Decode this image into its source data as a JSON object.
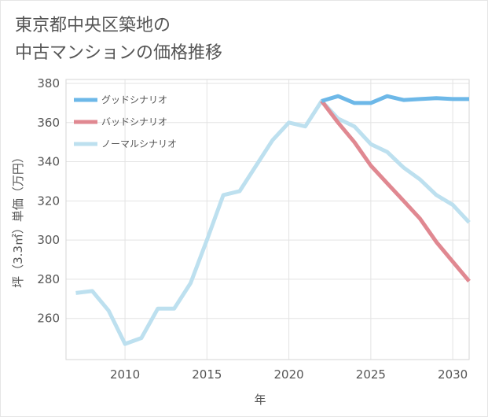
{
  "chart_data": {
    "type": "line",
    "title_lines": [
      "東京都中央区築地の",
      "中古マンションの価格推移"
    ],
    "xlabel": "年",
    "ylabel": "坪（3.3㎡）単価（万円）",
    "xlim": [
      2006.4,
      2031
    ],
    "ylim": [
      239,
      382
    ],
    "x_ticks": [
      2010,
      2015,
      2020,
      2025,
      2030
    ],
    "y_ticks": [
      260,
      280,
      300,
      320,
      340,
      360,
      380
    ],
    "grid": true,
    "legend_position": "top-left",
    "series": [
      {
        "name": "グッドシナリオ",
        "color": "#6db8e8",
        "x": [
          2022,
          2023,
          2024,
          2025,
          2026,
          2027,
          2028,
          2029,
          2030,
          2031
        ],
        "y": [
          371,
          373.5,
          370,
          370,
          373.5,
          371.5,
          372,
          372.5,
          372,
          372
        ]
      },
      {
        "name": "バッドシナリオ",
        "color": "#e08891",
        "x": [
          2022,
          2023,
          2024,
          2025,
          2026,
          2027,
          2028,
          2029,
          2030,
          2031
        ],
        "y": [
          371,
          360,
          350,
          338,
          329,
          320,
          311,
          299,
          289,
          279
        ]
      },
      {
        "name": "ノーマルシナリオ",
        "color": "#bde0ef",
        "x": [
          2007,
          2008,
          2009,
          2010,
          2011,
          2012,
          2013,
          2014,
          2015,
          2016,
          2017,
          2018,
          2019,
          2020,
          2021,
          2022,
          2023,
          2024,
          2025,
          2026,
          2027,
          2028,
          2029,
          2030,
          2031
        ],
        "y": [
          273,
          274,
          264,
          247,
          250,
          265,
          265,
          278,
          300,
          323,
          325,
          338,
          351,
          360,
          358,
          371,
          362,
          358,
          349,
          345,
          337,
          331,
          323,
          318,
          309
        ]
      }
    ]
  }
}
